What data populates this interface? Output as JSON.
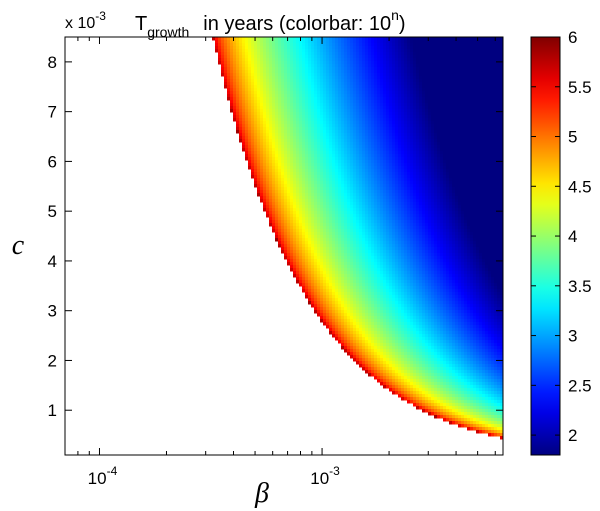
{
  "chart_data": {
    "type": "heatmap",
    "title": {
      "main": "T",
      "subscript": "growth",
      "rest": "in years (colorbar: 10",
      "superscript": "n",
      "close": ")"
    },
    "xlabel": "β",
    "ylabel": "c",
    "x_scale": "log",
    "xlim": [
      7e-05,
      0.0065
    ],
    "x_ticks": [
      0.0001,
      0.001
    ],
    "x_tick_labels": [
      {
        "base": "10",
        "exp": "-4"
      },
      {
        "base": "10",
        "exp": "-3"
      }
    ],
    "ylim": [
      0.0001,
      0.0085
    ],
    "y_multiplier": {
      "base": "x 10",
      "exp": "-3"
    },
    "y_ticks": [
      0.001,
      0.002,
      0.003,
      0.004,
      0.005,
      0.006,
      0.007,
      0.008
    ],
    "y_tick_labels": [
      "1",
      "2",
      "3",
      "4",
      "5",
      "6",
      "7",
      "8"
    ],
    "boundary_curve": {
      "description_points": [
        {
          "beta": 0.00032,
          "c": 0.0085
        },
        {
          "beta": 0.00045,
          "c": 0.006
        },
        {
          "beta": 0.00075,
          "c": 0.0037
        },
        {
          "beta": 0.0014,
          "c": 0.0021
        },
        {
          "beta": 0.0028,
          "c": 0.001
        },
        {
          "beta": 0.0062,
          "c": 0.00045
        }
      ],
      "value_at_boundary": 6,
      "value_min": 1.8
    },
    "colorbar": {
      "min": 1.8,
      "max": 6,
      "ticks": [
        2,
        2.5,
        3,
        3.5,
        4,
        4.5,
        5,
        5.5,
        6
      ],
      "tick_labels": [
        "2",
        "2.5",
        "3",
        "3.5",
        "4",
        "4.5",
        "5",
        "5.5",
        "6"
      ],
      "colormap": "jet"
    },
    "grid": false,
    "legend": "none"
  }
}
